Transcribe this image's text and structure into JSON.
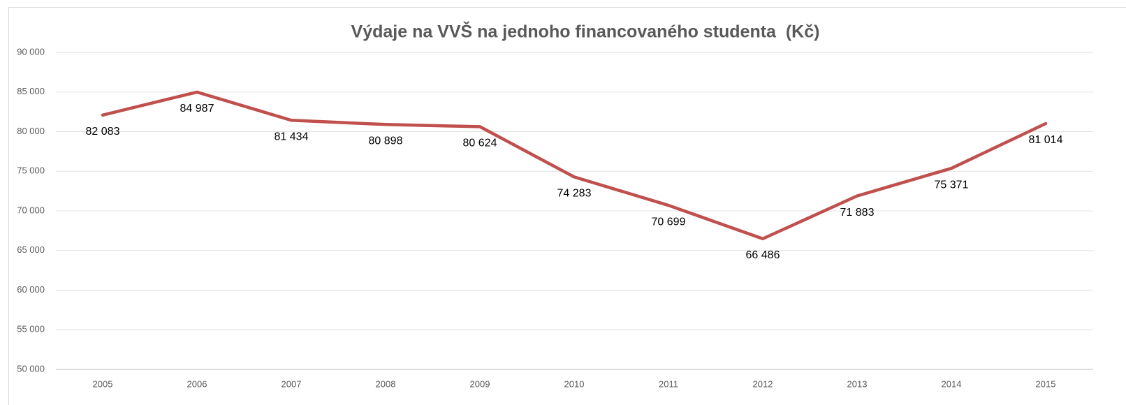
{
  "chart_data": {
    "type": "line",
    "title": "Výdaje na VVŠ na jednoho financovaného studenta  (Kč)",
    "categories": [
      "2005",
      "2006",
      "2007",
      "2008",
      "2009",
      "2010",
      "2011",
      "2012",
      "2013",
      "2014",
      "2015"
    ],
    "series": [
      {
        "name": "Výdaje na VVŠ na jednoho financovaného studenta",
        "color": "#c0504d",
        "values": [
          82083,
          84987,
          81434,
          80898,
          80624,
          74283,
          70699,
          66486,
          71883,
          75371,
          81014
        ],
        "value_labels": [
          "82 083",
          "84 987",
          "81 434",
          "80 898",
          "80 624",
          "74 283",
          "70 699",
          "66 486",
          "71 883",
          "75 371",
          "81 014"
        ]
      }
    ],
    "ylim": [
      50000,
      90000
    ],
    "yticks": [
      {
        "value": 50000,
        "label": "50 000"
      },
      {
        "value": 55000,
        "label": "55 000"
      },
      {
        "value": 60000,
        "label": "60 000"
      },
      {
        "value": 65000,
        "label": "65 000"
      },
      {
        "value": 70000,
        "label": "70 000"
      },
      {
        "value": 75000,
        "label": "75 000"
      },
      {
        "value": 80000,
        "label": "80 000"
      },
      {
        "value": 85000,
        "label": "85 000"
      },
      {
        "value": 90000,
        "label": "90 000"
      }
    ],
    "grid": true
  }
}
